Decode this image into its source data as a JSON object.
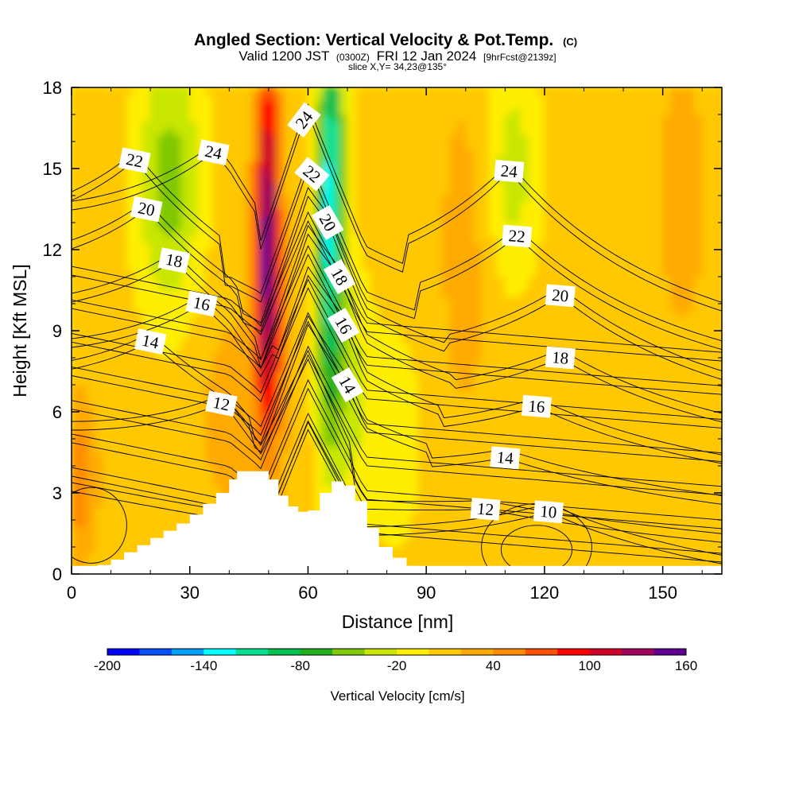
{
  "chart_data": {
    "type": "heatmap",
    "title": "Angled Section: Vertical Velocity & Pot.Temp.",
    "title_suffix": "(C)",
    "subtitle_main": "Valid 1200 JST",
    "subtitle_utc": "(0300Z)",
    "subtitle_date": "FRI 12 Jan 2024",
    "subtitle_fcst": "[9hrFcst@2139z]",
    "slice_label": "slice X,Y= 34,23@135°",
    "xlabel": "Distance [nm]",
    "ylabel": "Height [Kft MSL]",
    "xlim": [
      0,
      165
    ],
    "ylim": [
      0,
      18
    ],
    "xticks": [
      "0",
      "30",
      "60",
      "90",
      "120",
      "150"
    ],
    "yticks": [
      "0",
      "3",
      "6",
      "9",
      "12",
      "15",
      "18"
    ],
    "colorbar": {
      "label": "Vertical Velocity [cm/s]",
      "range": [
        -200,
        160
      ],
      "step": 20,
      "tick_values": [
        -200,
        -140,
        -80,
        -20,
        40,
        100,
        160
      ],
      "tick_labels": [
        "-200",
        "-140",
        "-80",
        "-20",
        "40",
        "100",
        "160"
      ],
      "colors": [
        "#0000ff",
        "#0050ff",
        "#00a0ff",
        "#00ffff",
        "#00e090",
        "#00c050",
        "#20b020",
        "#80c800",
        "#c8e600",
        "#ffee00",
        "#ffc800",
        "#ffaa00",
        "#ff8c00",
        "#ff5000",
        "#ff0000",
        "#d20028",
        "#a0005a",
        "#600090"
      ]
    },
    "vertical_velocity_regions": [
      {
        "x": [
          48,
          52
        ],
        "w_cm_s": "100 to 160",
        "note": "strong updraft"
      },
      {
        "x": [
          64,
          70
        ],
        "w_cm_s": "-140 to -80",
        "note": "strong downdraft"
      },
      {
        "x": [
          18,
          30
        ],
        "w_cm_s": "-60 to -20"
      },
      {
        "x": [
          108,
          118
        ],
        "w_cm_s": "-40 to -20"
      },
      {
        "x": [
          0,
          5
        ],
        "height_kft": [
          1,
          5
        ],
        "w_cm_s": "40 to 60"
      }
    ],
    "terrain_kft": [
      [
        0,
        0
      ],
      [
        10,
        0.4
      ],
      [
        20,
        1.2
      ],
      [
        30,
        2
      ],
      [
        40,
        3.2
      ],
      [
        42,
        3.8
      ],
      [
        50,
        3.8
      ],
      [
        55,
        2.6
      ],
      [
        60,
        2.2
      ],
      [
        63,
        2.5
      ],
      [
        66,
        3.5
      ],
      [
        72,
        3.2
      ],
      [
        78,
        1.2
      ],
      [
        85,
        0.4
      ],
      [
        90,
        0
      ],
      [
        165,
        0
      ]
    ],
    "theta_contours": [
      {
        "label": "10",
        "value": 10,
        "x": 121,
        "y": 2.3
      },
      {
        "label": "12",
        "value": 12,
        "x": 38,
        "y": 6.3
      },
      {
        "label": "12",
        "value": 12,
        "x": 105,
        "y": 2.4
      },
      {
        "label": "14",
        "value": 14,
        "x": 20,
        "y": 8.6
      },
      {
        "label": "14",
        "value": 14,
        "x": 70,
        "y": 7.0
      },
      {
        "label": "14",
        "value": 14,
        "x": 110,
        "y": 4.3
      },
      {
        "label": "16",
        "value": 16,
        "x": 33,
        "y": 10.0
      },
      {
        "label": "16",
        "value": 16,
        "x": 69,
        "y": 9.2
      },
      {
        "label": "16",
        "value": 16,
        "x": 118,
        "y": 6.2
      },
      {
        "label": "18",
        "value": 18,
        "x": 26,
        "y": 11.6
      },
      {
        "label": "18",
        "value": 18,
        "x": 68,
        "y": 11.0
      },
      {
        "label": "18",
        "value": 18,
        "x": 124,
        "y": 8.0
      },
      {
        "label": "20",
        "value": 20,
        "x": 19,
        "y": 13.5
      },
      {
        "label": "20",
        "value": 20,
        "x": 65,
        "y": 13.0
      },
      {
        "label": "20",
        "value": 20,
        "x": 124,
        "y": 10.3
      },
      {
        "label": "22",
        "value": 22,
        "x": 16,
        "y": 15.3
      },
      {
        "label": "22",
        "value": 22,
        "x": 61,
        "y": 14.8
      },
      {
        "label": "22",
        "value": 22,
        "x": 113,
        "y": 12.5
      },
      {
        "label": "24",
        "value": 24,
        "x": 36,
        "y": 15.6
      },
      {
        "label": "24",
        "value": 24,
        "x": 59,
        "y": 16.8
      },
      {
        "label": "24",
        "value": 24,
        "x": 111,
        "y": 14.9
      }
    ]
  }
}
